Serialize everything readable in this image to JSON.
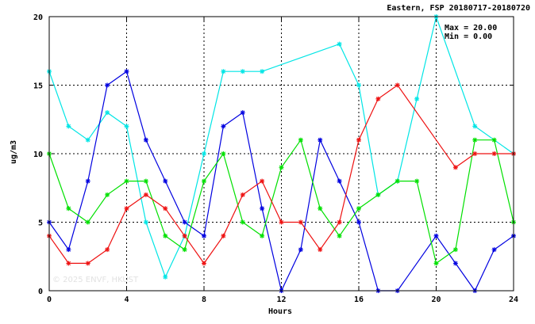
{
  "chart_data": {
    "type": "line",
    "title": "Eastern, FSP 20180717-20180720",
    "xlabel": "Hours",
    "ylabel": "ug/m3",
    "xlim": [
      0,
      24
    ],
    "ylim": [
      0,
      20
    ],
    "xticks": [
      0,
      4,
      8,
      12,
      16,
      20,
      24
    ],
    "yticks": [
      0,
      5,
      10,
      15,
      20
    ],
    "grid": true,
    "stats": {
      "max_label": "Max = 20.00",
      "min_label": "Min =  0.00"
    },
    "watermark": "© 2025  ENVF, HKUST",
    "marker": "asterisk",
    "series": [
      {
        "color": "#00e5e5",
        "points": [
          [
            0,
            16
          ],
          [
            1,
            12
          ],
          [
            2,
            11
          ],
          [
            3,
            13
          ],
          [
            4,
            12
          ],
          [
            5,
            5
          ],
          [
            6,
            1
          ],
          [
            7,
            4
          ],
          [
            8,
            10
          ],
          [
            9,
            16
          ],
          [
            10,
            16
          ],
          [
            11,
            16
          ],
          [
            15,
            18
          ],
          [
            16,
            15
          ],
          [
            17,
            7
          ],
          [
            18,
            8
          ],
          [
            19,
            14
          ],
          [
            20,
            20
          ],
          [
            22,
            12
          ],
          [
            24,
            10
          ]
        ]
      },
      {
        "color": "#0000e0",
        "points": [
          [
            0,
            5
          ],
          [
            1,
            3
          ],
          [
            2,
            8
          ],
          [
            3,
            15
          ],
          [
            4,
            16
          ],
          [
            5,
            11
          ],
          [
            6,
            8
          ],
          [
            7,
            5
          ],
          [
            8,
            4
          ],
          [
            9,
            12
          ],
          [
            10,
            13
          ],
          [
            11,
            6
          ],
          [
            12,
            0
          ],
          [
            13,
            3
          ],
          [
            14,
            11
          ],
          [
            15,
            8
          ],
          [
            16,
            5
          ],
          [
            17,
            0
          ],
          [
            18,
            0
          ],
          [
            20,
            4
          ],
          [
            21,
            2
          ],
          [
            22,
            0
          ],
          [
            23,
            3
          ],
          [
            24,
            4
          ]
        ]
      },
      {
        "color": "#00e000",
        "points": [
          [
            0,
            10
          ],
          [
            1,
            6
          ],
          [
            2,
            5
          ],
          [
            3,
            7
          ],
          [
            4,
            8
          ],
          [
            5,
            8
          ],
          [
            6,
            4
          ],
          [
            7,
            3
          ],
          [
            8,
            8
          ],
          [
            9,
            10
          ],
          [
            10,
            5
          ],
          [
            11,
            4
          ],
          [
            12,
            9
          ],
          [
            13,
            11
          ],
          [
            14,
            6
          ],
          [
            15,
            4
          ],
          [
            16,
            6
          ],
          [
            17,
            7
          ],
          [
            18,
            8
          ],
          [
            19,
            8
          ],
          [
            20,
            2
          ],
          [
            21,
            3
          ],
          [
            22,
            11
          ],
          [
            23,
            11
          ],
          [
            24,
            5
          ]
        ]
      },
      {
        "color": "#ee1111",
        "points": [
          [
            0,
            4
          ],
          [
            1,
            2
          ],
          [
            2,
            2
          ],
          [
            3,
            3
          ],
          [
            4,
            6
          ],
          [
            5,
            7
          ],
          [
            6,
            6
          ],
          [
            7,
            4
          ],
          [
            8,
            2
          ],
          [
            9,
            4
          ],
          [
            10,
            7
          ],
          [
            11,
            8
          ],
          [
            12,
            5
          ],
          [
            13,
            5
          ],
          [
            14,
            3
          ],
          [
            15,
            5
          ],
          [
            16,
            11
          ],
          [
            17,
            14
          ],
          [
            18,
            15
          ],
          [
            21,
            9
          ],
          [
            22,
            10
          ],
          [
            23,
            10
          ],
          [
            24,
            10
          ]
        ]
      }
    ]
  }
}
